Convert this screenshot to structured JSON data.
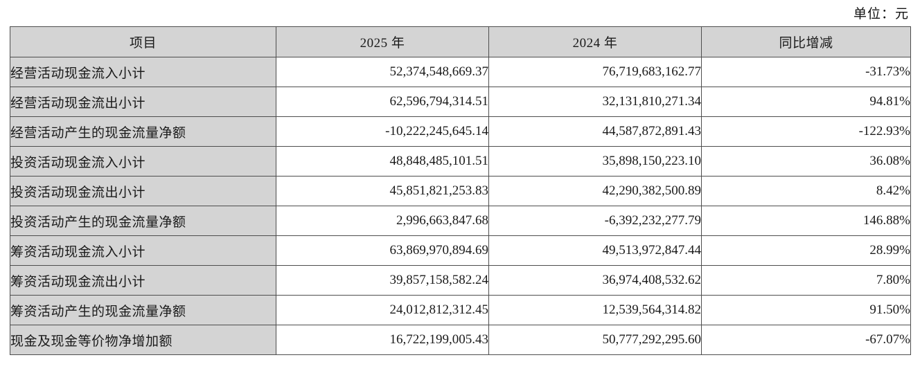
{
  "unit_label": "单位：元",
  "table": {
    "headers": {
      "item": "项目",
      "y2025": "2025 年",
      "y2024": "2024 年",
      "yoy": "同比增减"
    },
    "rows": [
      {
        "label": "经营活动现金流入小计",
        "y2025": "52,374,548,669.37",
        "y2024": "76,719,683,162.77",
        "yoy": "-31.73%"
      },
      {
        "label": "经营活动现金流出小计",
        "y2025": "62,596,794,314.51",
        "y2024": "32,131,810,271.34",
        "yoy": "94.81%"
      },
      {
        "label": "经营活动产生的现金流量净额",
        "y2025": "-10,222,245,645.14",
        "y2024": "44,587,872,891.43",
        "yoy": "-122.93%"
      },
      {
        "label": "投资活动现金流入小计",
        "y2025": "48,848,485,101.51",
        "y2024": "35,898,150,223.10",
        "yoy": "36.08%"
      },
      {
        "label": "投资活动现金流出小计",
        "y2025": "45,851,821,253.83",
        "y2024": "42,290,382,500.89",
        "yoy": "8.42%"
      },
      {
        "label": "投资活动产生的现金流量净额",
        "y2025": "2,996,663,847.68",
        "y2024": "-6,392,232,277.79",
        "yoy": "146.88%"
      },
      {
        "label": "筹资活动现金流入小计",
        "y2025": "63,869,970,894.69",
        "y2024": "49,513,972,847.44",
        "yoy": "28.99%"
      },
      {
        "label": "筹资活动现金流出小计",
        "y2025": "39,857,158,582.24",
        "y2024": "36,974,408,532.62",
        "yoy": "7.80%"
      },
      {
        "label": "筹资活动产生的现金流量净额",
        "y2025": "24,012,812,312.45",
        "y2024": "12,539,564,314.82",
        "yoy": "91.50%"
      },
      {
        "label": "现金及现金等价物净增加额",
        "y2025": "16,722,199,005.43",
        "y2024": "50,777,292,295.60",
        "yoy": "-67.07%"
      }
    ]
  }
}
